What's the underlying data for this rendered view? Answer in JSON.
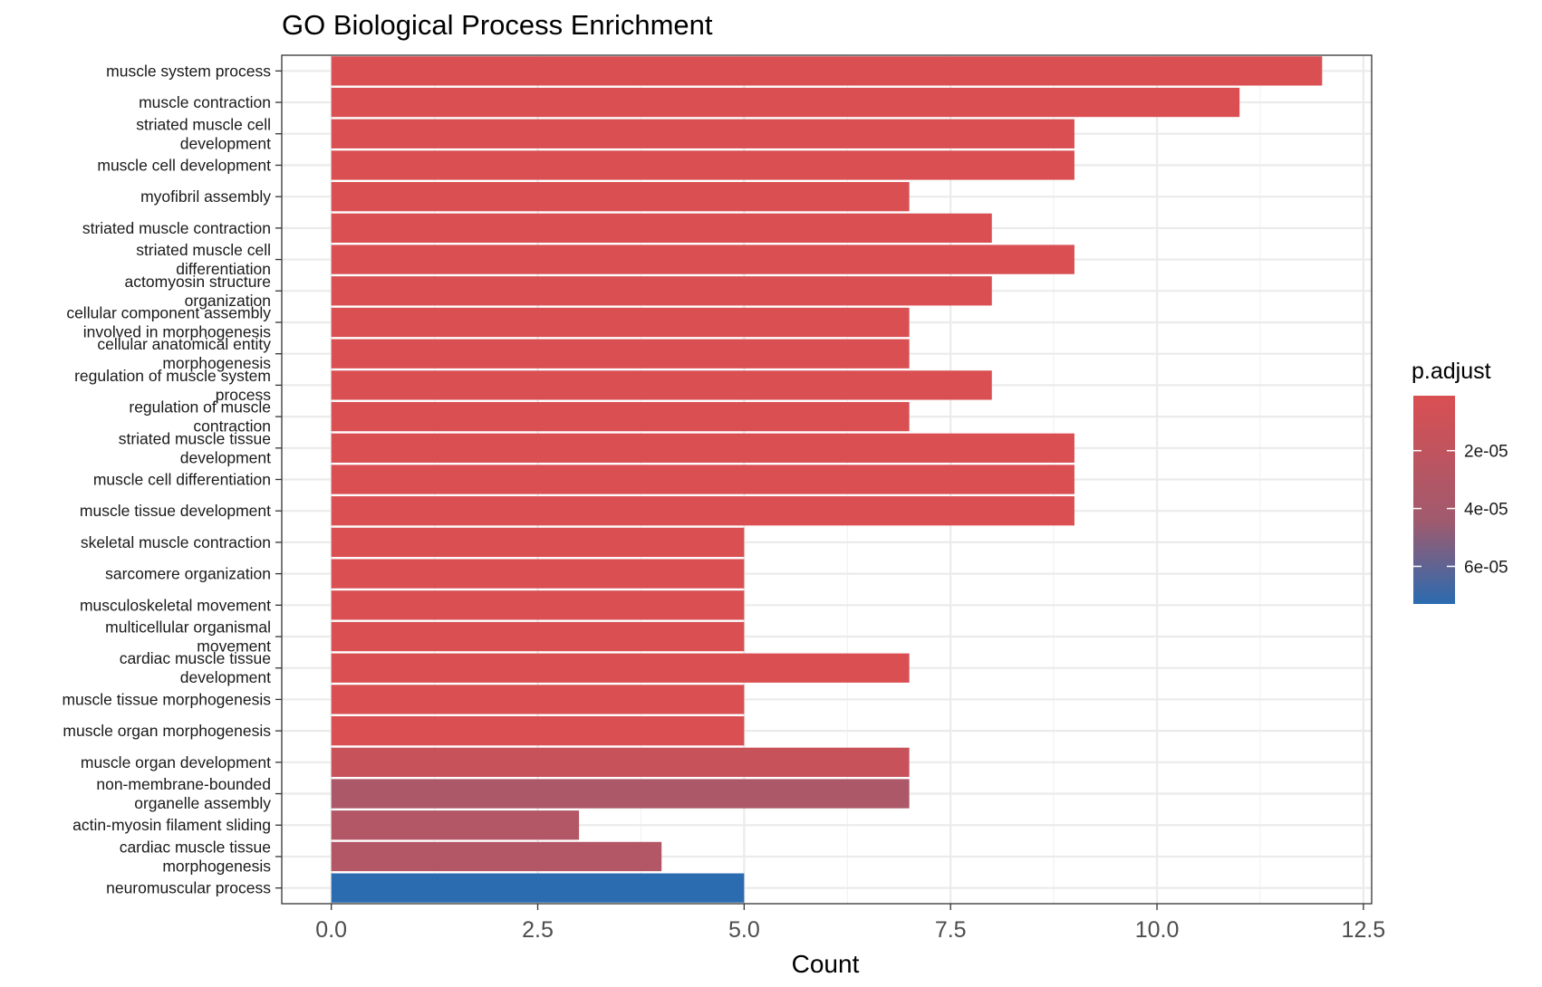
{
  "chart_data": {
    "type": "bar",
    "orientation": "horizontal",
    "title": "GO Biological Process Enrichment",
    "xlabel": "Count",
    "ylabel": "",
    "xlim": [
      -0.6,
      12.6
    ],
    "xticks": [
      "0.0",
      "2.5",
      "5.0",
      "7.5",
      "10.0",
      "12.5"
    ],
    "xtick_values": [
      0,
      2.5,
      5,
      7.5,
      10,
      12.5
    ],
    "grid": true,
    "legend": {
      "title": "p.adjust",
      "placement": "right",
      "ticks": [
        "2e-05",
        "4e-05",
        "6e-05"
      ],
      "tick_values": [
        2e-05,
        4e-05,
        6e-05
      ],
      "range": [
        1e-06,
        7.3e-05
      ],
      "low_color": "#d94f52",
      "mid_color": "#a05a6e",
      "high_color": "#2b6bb0"
    },
    "categories": [
      [
        "muscle system process"
      ],
      [
        "muscle contraction"
      ],
      [
        "striated muscle cell",
        "development"
      ],
      [
        "muscle cell development"
      ],
      [
        "myofibril assembly"
      ],
      [
        "striated muscle contraction"
      ],
      [
        "striated muscle cell",
        "differentiation"
      ],
      [
        "actomyosin structure",
        "organization"
      ],
      [
        "cellular component assembly",
        "involved in morphogenesis"
      ],
      [
        "cellular anatomical entity",
        "morphogenesis"
      ],
      [
        "regulation of muscle system",
        "process"
      ],
      [
        "regulation of muscle",
        "contraction"
      ],
      [
        "striated muscle tissue",
        "development"
      ],
      [
        "muscle cell differentiation"
      ],
      [
        "muscle tissue development"
      ],
      [
        "skeletal muscle contraction"
      ],
      [
        "sarcomere organization"
      ],
      [
        "musculoskeletal movement"
      ],
      [
        "multicellular organismal",
        "movement"
      ],
      [
        "cardiac muscle tissue",
        "development"
      ],
      [
        "muscle tissue morphogenesis"
      ],
      [
        "muscle organ morphogenesis"
      ],
      [
        "muscle organ development"
      ],
      [
        "non-membrane-bounded",
        "organelle assembly"
      ],
      [
        "actin-myosin filament sliding"
      ],
      [
        "cardiac muscle tissue",
        "morphogenesis"
      ],
      [
        "neuromuscular process"
      ]
    ],
    "values": [
      12,
      11,
      9,
      9,
      7,
      8,
      9,
      8,
      7,
      7,
      8,
      7,
      9,
      9,
      9,
      5,
      5,
      5,
      5,
      7,
      5,
      5,
      7,
      7,
      3,
      4,
      5
    ],
    "p_adjust": [
      1e-06,
      1e-06,
      1e-06,
      1e-06,
      1e-06,
      1e-06,
      1e-06,
      1e-06,
      1e-06,
      1e-06,
      1e-06,
      1e-06,
      1e-06,
      1e-06,
      1e-06,
      1e-06,
      1e-06,
      1e-06,
      1e-06,
      1e-06,
      1e-06,
      1e-06,
      1.4e-05,
      3.5e-05,
      3e-05,
      3e-05,
      7.3e-05
    ]
  }
}
